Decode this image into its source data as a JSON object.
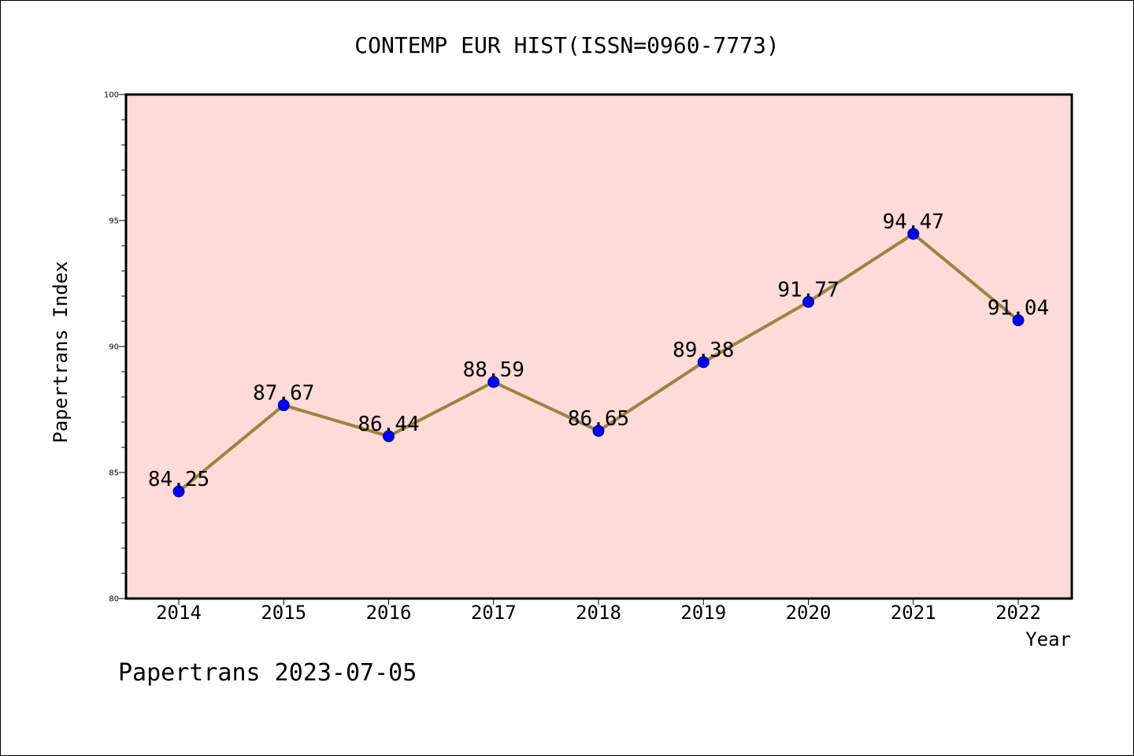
{
  "chart_data": {
    "type": "line",
    "title": "CONTEMP EUR HIST(ISSN=0960-7773)",
    "xlabel": "Year",
    "ylabel": "Papertrans Index",
    "x": [
      "2014",
      "2015",
      "2016",
      "2017",
      "2018",
      "2019",
      "2020",
      "2021",
      "2022"
    ],
    "series": [
      {
        "values": [
          84.25,
          87.67,
          86.44,
          88.59,
          86.65,
          89.38,
          91.77,
          94.47,
          91.04
        ],
        "labels": [
          "84.25",
          "87.67",
          "86.44",
          "88.59",
          "86.65",
          "89.38",
          "91.77",
          "94.47",
          "91.04"
        ]
      }
    ],
    "ylim": [
      80,
      100
    ],
    "y_ticks": [
      "80",
      "85",
      "90",
      "95",
      "100"
    ],
    "grid": false,
    "colors": {
      "plot_background": "#fddbd8",
      "line": "#9a8540",
      "marker": "#0000ff"
    },
    "footer": "Papertrans 2023-07-05"
  }
}
